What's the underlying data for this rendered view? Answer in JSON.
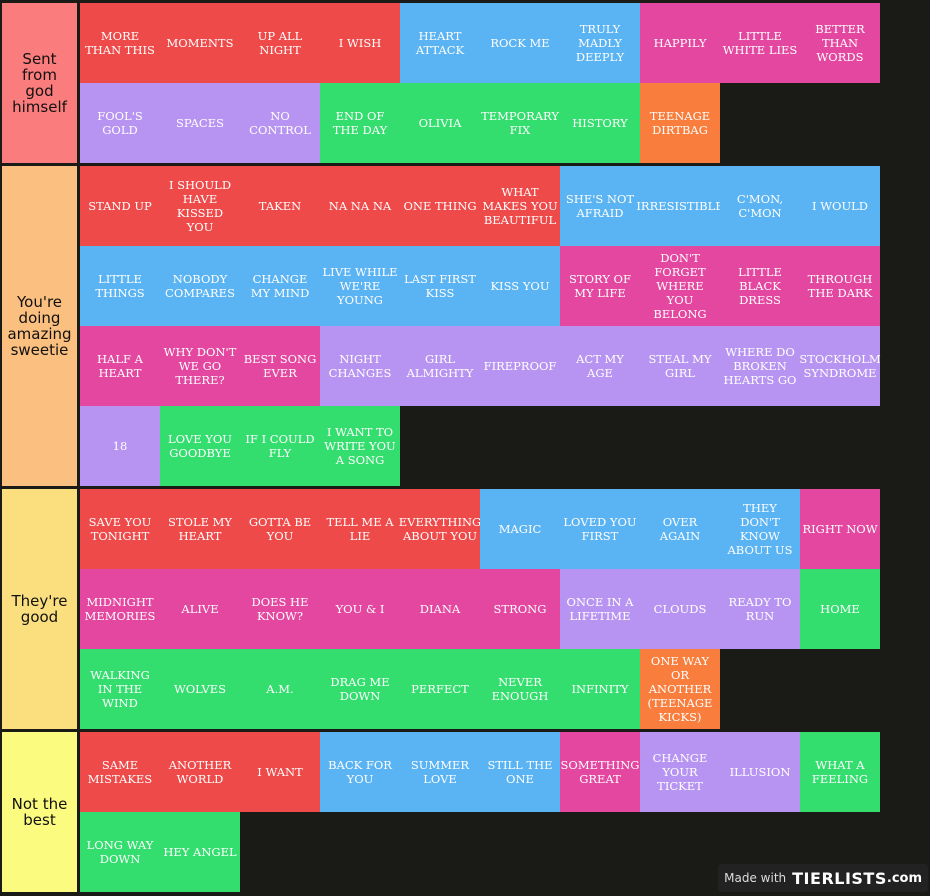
{
  "colors": {
    "red": "#ef4a4a",
    "blue": "#5ab3f2",
    "pink": "#e3479f",
    "purple": "#b894f2",
    "green": "#34de6e",
    "orange": "#f97d3c",
    "background": "#1a1a17"
  },
  "tiers": [
    {
      "label": "Sent from god himself",
      "color": "#fb7c7c",
      "items": [
        {
          "text": "MORE THAN THIS",
          "c": "red"
        },
        {
          "text": "MOMENTS",
          "c": "red"
        },
        {
          "text": "UP ALL NIGHT",
          "c": "red"
        },
        {
          "text": "I WISH",
          "c": "red"
        },
        {
          "text": "HEART ATTACK",
          "c": "blue"
        },
        {
          "text": "ROCK ME",
          "c": "blue"
        },
        {
          "text": "TRULY MADLY DEEPLY",
          "c": "blue"
        },
        {
          "text": "HAPPILY",
          "c": "pink"
        },
        {
          "text": "LITTLE WHITE LIES",
          "c": "pink"
        },
        {
          "text": "BETTER THAN WORDS",
          "c": "pink"
        },
        {
          "text": "FOOL'S GOLD",
          "c": "purple"
        },
        {
          "text": "SPACES",
          "c": "purple"
        },
        {
          "text": "NO CONTROL",
          "c": "purple"
        },
        {
          "text": "END OF THE DAY",
          "c": "green"
        },
        {
          "text": "OLIVIA",
          "c": "green"
        },
        {
          "text": "TEMPORARY FIX",
          "c": "green"
        },
        {
          "text": "HISTORY",
          "c": "green"
        },
        {
          "text": "TEENAGE DIRTBAG",
          "c": "orange"
        }
      ]
    },
    {
      "label": "You're doing amazing sweetie",
      "color": "#fbbf7f",
      "items": [
        {
          "text": "STAND UP",
          "c": "red"
        },
        {
          "text": "I SHOULD HAVE KISSED YOU",
          "c": "red"
        },
        {
          "text": "TAKEN",
          "c": "red"
        },
        {
          "text": "NA NA NA",
          "c": "red"
        },
        {
          "text": "ONE THING",
          "c": "red"
        },
        {
          "text": "WHAT MAKES YOU BEAUTIFUL",
          "c": "red"
        },
        {
          "text": "SHE'S NOT AFRAID",
          "c": "blue"
        },
        {
          "text": "IRRESISTIBLE",
          "c": "blue"
        },
        {
          "text": "C'MON, C'MON",
          "c": "blue"
        },
        {
          "text": "I WOULD",
          "c": "blue"
        },
        {
          "text": "LITTLE THINGS",
          "c": "blue"
        },
        {
          "text": "NOBODY COMPARES",
          "c": "blue"
        },
        {
          "text": "CHANGE MY MIND",
          "c": "blue"
        },
        {
          "text": "LIVE WHILE WE'RE YOUNG",
          "c": "blue"
        },
        {
          "text": "LAST FIRST KISS",
          "c": "blue"
        },
        {
          "text": "KISS YOU",
          "c": "blue"
        },
        {
          "text": "STORY OF MY LIFE",
          "c": "pink"
        },
        {
          "text": "DON'T FORGET WHERE YOU BELONG",
          "c": "pink"
        },
        {
          "text": "LITTLE BLACK DRESS",
          "c": "pink"
        },
        {
          "text": "THROUGH THE DARK",
          "c": "pink"
        },
        {
          "text": "HALF A HEART",
          "c": "pink"
        },
        {
          "text": "WHY DON'T WE GO THERE?",
          "c": "pink"
        },
        {
          "text": "BEST SONG EVER",
          "c": "pink"
        },
        {
          "text": "NIGHT CHANGES",
          "c": "purple"
        },
        {
          "text": "GIRL ALMIGHTY",
          "c": "purple"
        },
        {
          "text": "FIREPROOF",
          "c": "purple"
        },
        {
          "text": "ACT MY AGE",
          "c": "purple"
        },
        {
          "text": "STEAL MY GIRL",
          "c": "purple"
        },
        {
          "text": "WHERE DO BROKEN HEARTS GO",
          "c": "purple"
        },
        {
          "text": "STOCKHOLM SYNDROME",
          "c": "purple"
        },
        {
          "text": "18",
          "c": "purple"
        },
        {
          "text": "LOVE YOU GOODBYE",
          "c": "green"
        },
        {
          "text": "IF I COULD FLY",
          "c": "green"
        },
        {
          "text": "I WANT TO WRITE YOU A SONG",
          "c": "green"
        }
      ]
    },
    {
      "label": "They're good",
      "color": "#fbdf7f",
      "items": [
        {
          "text": "SAVE YOU TONIGHT",
          "c": "red"
        },
        {
          "text": "STOLE MY HEART",
          "c": "red"
        },
        {
          "text": "GOTTA BE YOU",
          "c": "red"
        },
        {
          "text": "TELL ME A LIE",
          "c": "red"
        },
        {
          "text": "EVERYTHING ABOUT YOU",
          "c": "red"
        },
        {
          "text": "MAGIC",
          "c": "blue"
        },
        {
          "text": "LOVED YOU FIRST",
          "c": "blue"
        },
        {
          "text": "OVER AGAIN",
          "c": "blue"
        },
        {
          "text": "THEY DON'T KNOW ABOUT US",
          "c": "blue"
        },
        {
          "text": "RIGHT NOW",
          "c": "pink"
        },
        {
          "text": "MIDNIGHT MEMORIES",
          "c": "pink"
        },
        {
          "text": "ALIVE",
          "c": "pink"
        },
        {
          "text": "DOES HE KNOW?",
          "c": "pink"
        },
        {
          "text": "YOU & I",
          "c": "pink"
        },
        {
          "text": "DIANA",
          "c": "pink"
        },
        {
          "text": "STRONG",
          "c": "pink"
        },
        {
          "text": "ONCE IN A LIFETIME",
          "c": "purple"
        },
        {
          "text": "CLOUDS",
          "c": "purple"
        },
        {
          "text": "READY TO RUN",
          "c": "purple"
        },
        {
          "text": "HOME",
          "c": "green"
        },
        {
          "text": "WALKING IN THE WIND",
          "c": "green"
        },
        {
          "text": "WOLVES",
          "c": "green"
        },
        {
          "text": "A.M.",
          "c": "green"
        },
        {
          "text": "DRAG ME DOWN",
          "c": "green"
        },
        {
          "text": "PERFECT",
          "c": "green"
        },
        {
          "text": "NEVER ENOUGH",
          "c": "green"
        },
        {
          "text": "INFINITY",
          "c": "green"
        },
        {
          "text": "ONE WAY OR ANOTHER (TEENAGE KICKS)",
          "c": "orange"
        }
      ]
    },
    {
      "label": "Not the best",
      "color": "#fbfb7f",
      "items": [
        {
          "text": "SAME MISTAKES",
          "c": "red"
        },
        {
          "text": "ANOTHER WORLD",
          "c": "red"
        },
        {
          "text": "I WANT",
          "c": "red"
        },
        {
          "text": "BACK FOR YOU",
          "c": "blue"
        },
        {
          "text": "SUMMER LOVE",
          "c": "blue"
        },
        {
          "text": "STILL THE ONE",
          "c": "blue"
        },
        {
          "text": "SOMETHING GREAT",
          "c": "pink"
        },
        {
          "text": "CHANGE YOUR TICKET",
          "c": "purple"
        },
        {
          "text": "ILLUSION",
          "c": "purple"
        },
        {
          "text": "WHAT A FEELING",
          "c": "green"
        },
        {
          "text": "LONG WAY DOWN",
          "c": "green"
        },
        {
          "text": "HEY ANGEL",
          "c": "green"
        }
      ]
    }
  ],
  "watermark": {
    "made_with": "Made with",
    "logo": "TIERLISTS",
    "tld": ".com"
  }
}
